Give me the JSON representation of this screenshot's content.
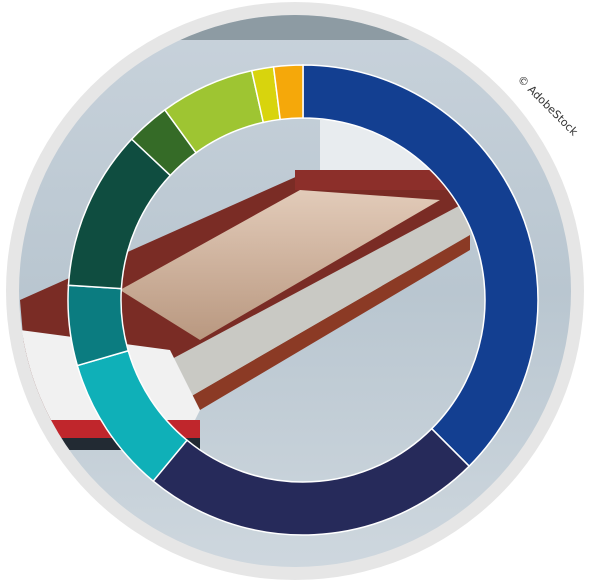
{
  "chart_data": {
    "type": "donut",
    "categories": [
      null,
      null,
      null,
      null,
      null,
      null,
      null,
      null,
      null
    ],
    "values": [
      37.5,
      23.5,
      9.5,
      5.5,
      11,
      3,
      6.5,
      1.5,
      2
    ],
    "colors": [
      "#133f91",
      "#262a5a",
      "#0fb0b8",
      "#0b7c80",
      "#0f4d40",
      "#356b27",
      "#9ec532",
      "#d8d40d",
      "#f5a80a"
    ]
  },
  "credit": "© AdobeStock"
}
